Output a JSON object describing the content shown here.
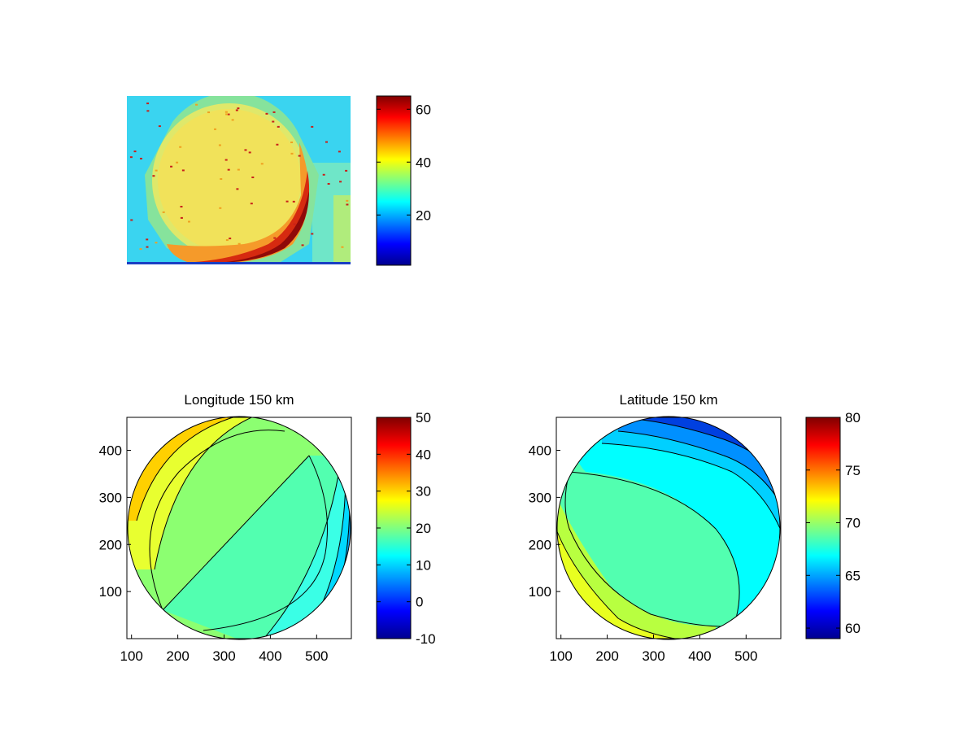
{
  "figure": {
    "panels": {
      "image": {
        "caption": "",
        "colorbar_ticks": [
          "20",
          "40",
          "60"
        ],
        "colorbar_range": [
          1,
          65
        ]
      },
      "longitude": {
        "title": "Longitude 150 km",
        "colorbar_ticks": [
          "-10",
          "0",
          "10",
          "20",
          "30",
          "40",
          "50"
        ],
        "x_ticks": [
          "100",
          "200",
          "300",
          "400",
          "500"
        ],
        "y_ticks": [
          "100",
          "200",
          "300",
          "400"
        ]
      },
      "latitude": {
        "title": "Latitude 150 km",
        "colorbar_ticks": [
          "60",
          "65",
          "70",
          "75",
          "80"
        ],
        "x_ticks": [
          "100",
          "200",
          "300",
          "400",
          "500"
        ],
        "y_ticks": [
          "100",
          "200",
          "300",
          "400"
        ]
      }
    },
    "colormap": "jet"
  },
  "chart_data": [
    {
      "type": "heatmap",
      "title": "",
      "description_kind": "camera image with colorbar",
      "clim": [
        1,
        65
      ],
      "colorbar_ticks": [
        20,
        40,
        60
      ]
    },
    {
      "type": "heatmap",
      "title": "Longitude 150 km",
      "xlim": [
        90,
        575
      ],
      "ylim": [
        0,
        470
      ],
      "xticks": [
        100,
        200,
        300,
        400,
        500
      ],
      "yticks": [
        100,
        200,
        300,
        400
      ],
      "clim": [
        -10,
        50
      ],
      "colorbar_ticks": [
        -10,
        0,
        10,
        20,
        30,
        40,
        50
      ],
      "disk": {
        "center": [
          355,
          235
        ],
        "radius": 235
      },
      "contour_levels": [
        5,
        10,
        14,
        17,
        20,
        25,
        30,
        35,
        40
      ],
      "gradient_direction_deg": -45
    },
    {
      "type": "heatmap",
      "title": "Latitude 150 km",
      "xlim": [
        90,
        575
      ],
      "ylim": [
        0,
        470
      ],
      "xticks": [
        100,
        200,
        300,
        400,
        500
      ],
      "yticks": [
        100,
        200,
        300,
        400
      ],
      "clim": [
        59,
        80
      ],
      "colorbar_ticks": [
        60,
        65,
        70,
        75,
        80
      ],
      "disk": {
        "center": [
          355,
          235
        ],
        "radius": 235
      },
      "contour_levels": [
        61,
        62,
        63,
        64,
        65,
        66,
        68,
        70,
        71,
        72,
        73
      ],
      "gradient_direction_deg": 45
    }
  ]
}
